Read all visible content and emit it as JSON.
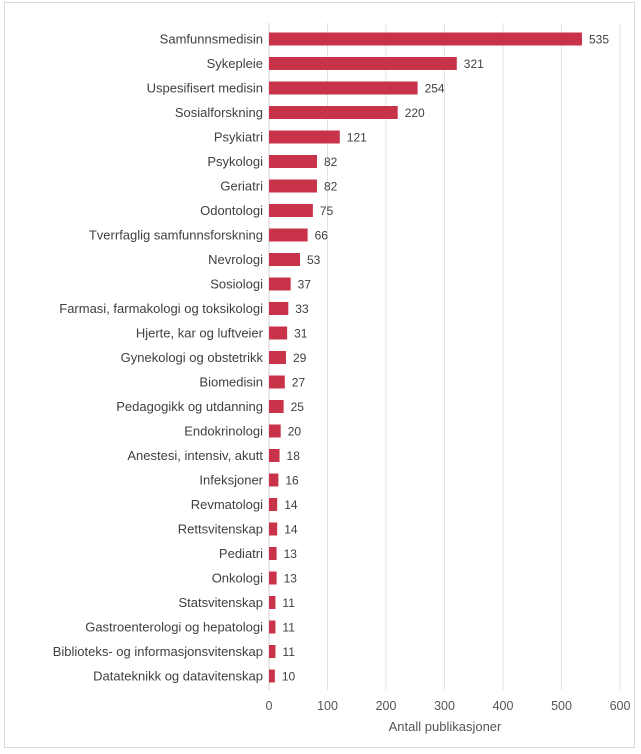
{
  "chart_data": {
    "type": "bar",
    "orientation": "horizontal",
    "title": "",
    "xlabel": "Antall publikasjoner",
    "ylabel": "",
    "xlim": [
      0,
      600
    ],
    "xticks": [
      0,
      100,
      200,
      300,
      400,
      500,
      600
    ],
    "grid": true,
    "legend": "none",
    "bar_color": "#c9334a",
    "categories": [
      "Samfunnsmedisin",
      "Sykepleie",
      "Uspesifisert medisin",
      "Sosialforskning",
      "Psykiatri",
      "Psykologi",
      "Geriatri",
      "Odontologi",
      "Tverrfaglig samfunnsforskning",
      "Nevrologi",
      "Sosiologi",
      "Farmasi, farmakologi og toksikologi",
      "Hjerte, kar og luftveier",
      "Gynekologi og obstetrikk",
      "Biomedisin",
      "Pedagogikk og utdanning",
      "Endokrinologi",
      "Anestesi, intensiv, akutt",
      "Infeksjoner",
      "Revmatologi",
      "Rettsvitenskap",
      "Pediatri",
      "Onkologi",
      "Statsvitenskap",
      "Gastroenterologi og hepatologi",
      "Biblioteks- og informasjonsvitenskap",
      "Datateknikk og datavitenskap"
    ],
    "values": [
      535,
      321,
      254,
      220,
      121,
      82,
      82,
      75,
      66,
      53,
      37,
      33,
      31,
      29,
      27,
      25,
      20,
      18,
      16,
      14,
      14,
      13,
      13,
      11,
      11,
      11,
      10
    ]
  }
}
